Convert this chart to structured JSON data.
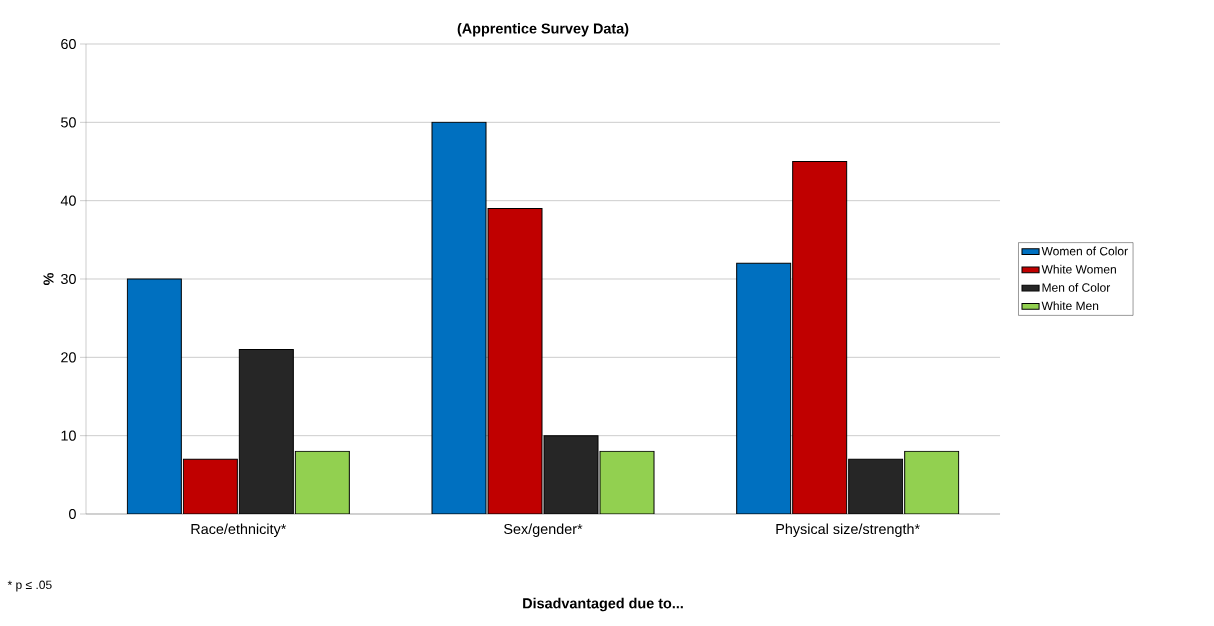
{
  "chart_data": {
    "type": "bar",
    "title": "(Apprentice Survey Data)",
    "xlabel": "Disadvantaged due to...",
    "ylabel": "%",
    "categories": [
      "Race/ethnicity*",
      "Sex/gender*",
      "Physical size/strength*"
    ],
    "series": [
      {
        "name": "Women of Color",
        "color": "#0070c0",
        "values": [
          30,
          50,
          32
        ]
      },
      {
        "name": "White Women",
        "color": "#c00000",
        "values": [
          7,
          39,
          45
        ]
      },
      {
        "name": "Men of Color",
        "color": "#262626",
        "values": [
          21,
          10,
          7
        ]
      },
      {
        "name": "White Men",
        "color": "#92d050",
        "values": [
          8,
          8,
          8
        ]
      }
    ],
    "ylim": [
      0,
      60
    ],
    "yticks": [
      0,
      10,
      20,
      30,
      40,
      50,
      60
    ],
    "grid": "y",
    "legend": "right",
    "annotations": [
      "* p ≤ .05"
    ]
  }
}
